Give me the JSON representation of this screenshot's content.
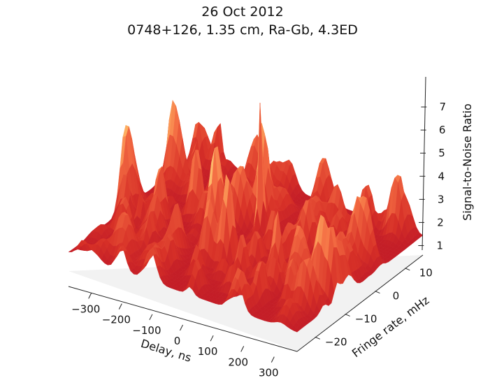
{
  "chart_data": {
    "type": "surface",
    "title": "26 Oct 2012",
    "subtitle": "0748+126, 1.35 cm, Ra-Gb, 4.3ED",
    "xlabel": "Delay, ns",
    "ylabel": "Fringe rate, mHz",
    "zlabel": "Signal-to-Noise Ratio",
    "xlim": [
      -375,
      375
    ],
    "ylim": [
      -26,
      16
    ],
    "zlim": [
      0.5,
      8
    ],
    "x_ticks": [
      -300,
      -200,
      -100,
      0,
      100,
      200,
      300
    ],
    "x_tick_labels": [
      "−300",
      "−200",
      "−100",
      "0",
      "100",
      "200",
      "300"
    ],
    "y_ticks": [
      -20,
      -10,
      0,
      10
    ],
    "y_tick_labels": [
      "−20",
      "−10",
      "0",
      "10"
    ],
    "z_ticks": [
      1,
      2,
      3,
      4,
      5,
      6,
      7
    ],
    "z_tick_labels": [
      "1",
      "2",
      "3",
      "4",
      "5",
      "6",
      "7"
    ],
    "peak": {
      "delay": 0,
      "fringe_rate": 0,
      "snr": 7.2
    },
    "noise_floor_snr": 1.3,
    "colormap": "RdYlGn",
    "colors": {
      "low": "#a50026",
      "mid": "#fdae61",
      "high": "#ffffbf",
      "peak": "#1a9850"
    }
  }
}
